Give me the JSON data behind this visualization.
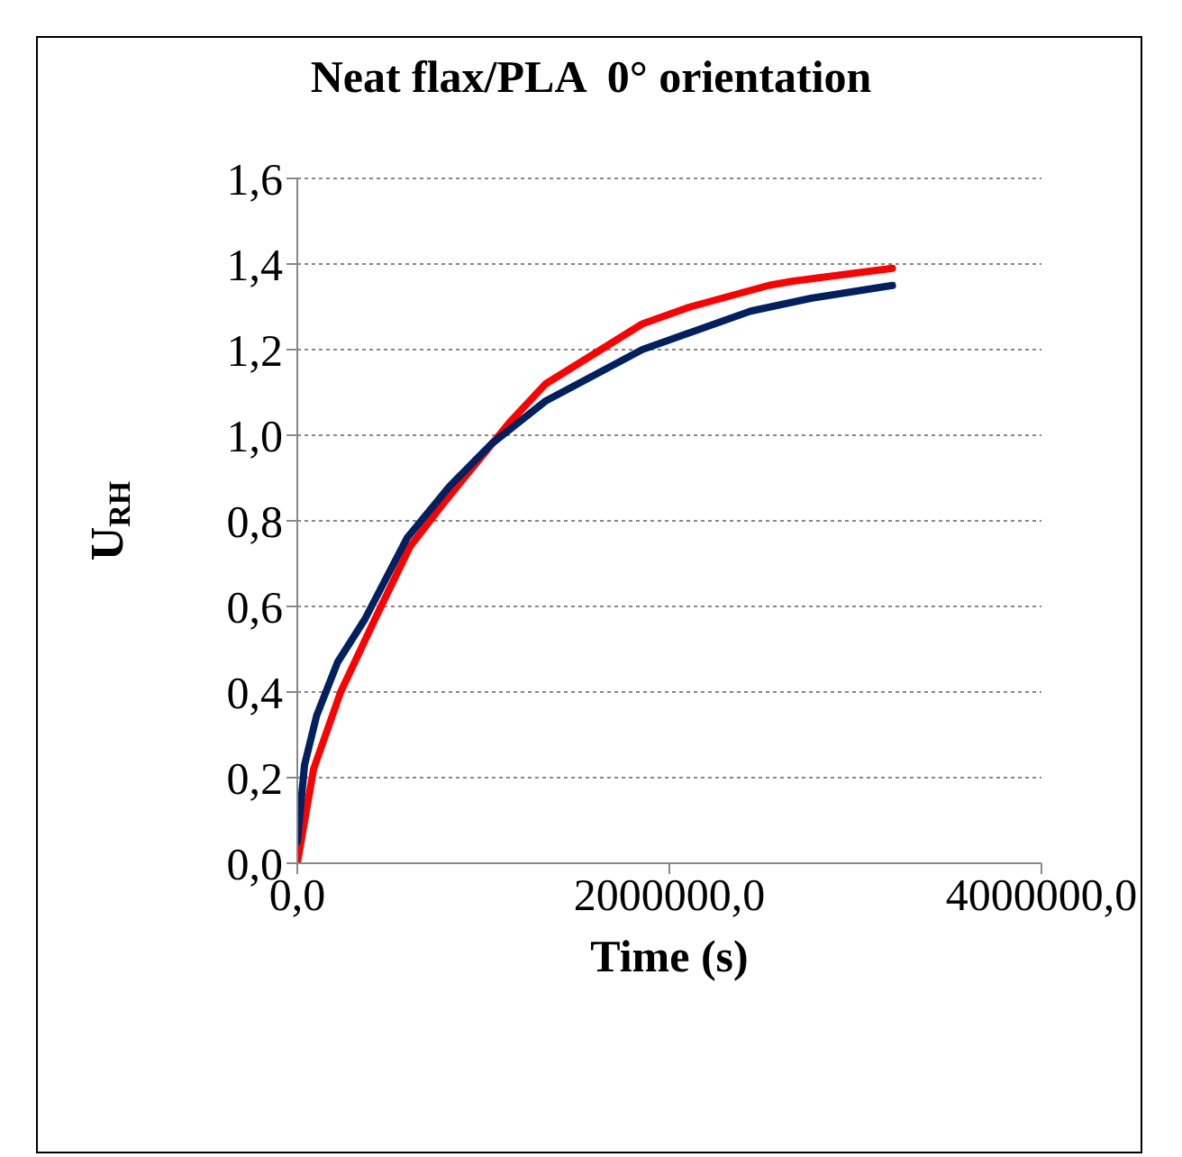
{
  "chart_data": {
    "type": "line",
    "title": "Neat flax/PLA  0° orientation",
    "xlabel": "Time (s)",
    "ylabel": "U$_{RH}$",
    "xlim": [
      0,
      4000000
    ],
    "xticks": [
      {
        "value": 0,
        "label": "0,0"
      },
      {
        "value": 2000000,
        "label": "2000000,0"
      },
      {
        "value": 4000000,
        "label": "4000000,0"
      }
    ],
    "ylim": [
      0,
      1.6
    ],
    "yticks": [
      {
        "value": 0,
        "label": "0,0"
      },
      {
        "value": 0.2,
        "label": "0,2"
      },
      {
        "value": 0.4,
        "label": "0,4"
      },
      {
        "value": 0.6,
        "label": "0,6"
      },
      {
        "value": 0.8,
        "label": "0,8"
      },
      {
        "value": 1.0,
        "label": "1,0"
      },
      {
        "value": 1.2,
        "label": "1,2"
      },
      {
        "value": 1.4,
        "label": "1,4"
      },
      {
        "value": 1.6,
        "label": "1,6"
      }
    ],
    "grid": "y",
    "legend": false,
    "marker": "none",
    "line_style": "solid",
    "series": [
      {
        "color": "#ff0000",
        "x": [
          0,
          87500,
          233000,
          428000,
          606000,
          784000,
          1141000,
          1335000,
          1595000,
          1854000,
          2113000,
          2534000,
          2664000,
          3199000
        ],
        "values": [
          0,
          0.22,
          0.4,
          0.58,
          0.74,
          0.84,
          1.03,
          1.12,
          1.19,
          1.26,
          1.3,
          1.35,
          1.36,
          1.39
        ]
      },
      {
        "color": "#002060",
        "x": [
          0,
          39000,
          104000,
          217000,
          363000,
          590000,
          817000,
          1044000,
          1335000,
          1595000,
          1854000,
          2113000,
          2437000,
          2761000,
          3199000
        ],
        "values": [
          0.05,
          0.23,
          0.345,
          0.47,
          0.57,
          0.76,
          0.88,
          0.98,
          1.08,
          1.14,
          1.2,
          1.24,
          1.29,
          1.32,
          1.35
        ]
      }
    ]
  }
}
